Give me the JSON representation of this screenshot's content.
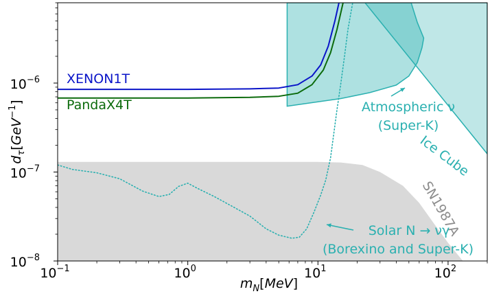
{
  "chart_data": {
    "type": "line",
    "xscale": "log",
    "yscale": "log",
    "xlim": [
      0.1,
      200
    ],
    "ylim": [
      1e-08,
      8e-06
    ],
    "xlabel": "m_N[MeV]",
    "ylabel": "d_τ[GeV^{-1}]",
    "xticks": [
      {
        "value": 0.1,
        "label": "10",
        "exp": "−1"
      },
      {
        "value": 1,
        "label": "10",
        "exp": "0"
      },
      {
        "value": 10,
        "label": "10",
        "exp": "1"
      },
      {
        "value": 100,
        "label": "10",
        "exp": "2"
      }
    ],
    "yticks": [
      {
        "value": 1e-08,
        "label": "10",
        "exp": "−8"
      },
      {
        "value": 1e-07,
        "label": "10",
        "exp": "−7"
      },
      {
        "value": 1e-06,
        "label": "10",
        "exp": "−6"
      }
    ],
    "series": [
      {
        "name": "XENON1T",
        "color": "#0a14c8",
        "style": "solid",
        "points": [
          [
            0.1,
            8.5e-07
          ],
          [
            1,
            8.5e-07
          ],
          [
            3,
            8.6e-07
          ],
          [
            5,
            8.8e-07
          ],
          [
            7,
            9.6e-07
          ],
          [
            9,
            1.2e-06
          ],
          [
            10.5,
            1.6e-06
          ],
          [
            12,
            2.6e-06
          ],
          [
            13.5,
            5e-06
          ],
          [
            14.5,
            8e-06
          ]
        ]
      },
      {
        "name": "PandaX4T",
        "color": "#0b6a0b",
        "style": "solid",
        "points": [
          [
            0.1,
            6.8e-07
          ],
          [
            1,
            6.8e-07
          ],
          [
            3,
            6.9e-07
          ],
          [
            5,
            7.1e-07
          ],
          [
            7,
            7.7e-07
          ],
          [
            9,
            9.6e-07
          ],
          [
            11,
            1.4e-06
          ],
          [
            12.5,
            2.2e-06
          ],
          [
            14,
            4e-06
          ],
          [
            15.6,
            8e-06
          ]
        ]
      },
      {
        "name": "Solar N → νγ (Borexino and Super-K)",
        "color": "#2ab0b0",
        "style": "dotted",
        "points": [
          [
            0.1,
            1.2e-07
          ],
          [
            0.13,
            1.07e-07
          ],
          [
            0.2,
            9.8e-08
          ],
          [
            0.3,
            8.4e-08
          ],
          [
            0.45,
            6.1e-08
          ],
          [
            0.6,
            5.3e-08
          ],
          [
            0.72,
            5.6e-08
          ],
          [
            0.85,
            6.9e-08
          ],
          [
            1,
            7.5e-08
          ],
          [
            1.2,
            6.5e-08
          ],
          [
            1.6,
            5.3e-08
          ],
          [
            2.2,
            4.1e-08
          ],
          [
            3,
            3.2e-08
          ],
          [
            4,
            2.3e-08
          ],
          [
            5,
            1.95e-08
          ],
          [
            6.3,
            1.8e-08
          ],
          [
            7.2,
            1.85e-08
          ],
          [
            8.2,
            2.3e-08
          ],
          [
            9.3,
            3.5e-08
          ],
          [
            10.5,
            5.5e-08
          ],
          [
            11.5,
            8.2e-08
          ],
          [
            12.5,
            1.45e-07
          ],
          [
            13.2,
            2.6e-07
          ],
          [
            14,
            5e-07
          ],
          [
            15,
            1e-06
          ],
          [
            16,
            2e-06
          ],
          [
            17,
            4e-06
          ],
          [
            18.5,
            8e-06
          ]
        ]
      }
    ],
    "regions": [
      {
        "name": "SN1987A",
        "color": "#d9d9d9",
        "opacity": 1,
        "points": [
          [
            0.1,
            1.3e-07
          ],
          [
            10,
            1.3e-07
          ],
          [
            15,
            1.28e-07
          ],
          [
            22,
            1.2e-07
          ],
          [
            30,
            1e-07
          ],
          [
            45,
            7e-08
          ],
          [
            60,
            4.5e-08
          ],
          [
            80,
            2.5e-08
          ],
          [
            100,
            1.6e-08
          ],
          [
            130,
            1e-08
          ],
          [
            0.1,
            1e-08
          ]
        ]
      },
      {
        "name": "Ice Cube",
        "color": "#2ab0b0",
        "opacity": 0.3,
        "points": [
          [
            23,
            8e-06
          ],
          [
            200,
            1.6e-07
          ],
          [
            200,
            8e-06
          ]
        ]
      },
      {
        "name": "Atmospheric ν (Super-K)",
        "color": "#2ab0b0",
        "opacity": 0.38,
        "points": [
          [
            5.8,
            8e-06
          ],
          [
            5.8,
            5.5e-07
          ],
          [
            15,
            6.7e-07
          ],
          [
            25,
            7.8e-07
          ],
          [
            40,
            9.5e-07
          ],
          [
            50,
            1.2e-06
          ],
          [
            58,
            1.7e-06
          ],
          [
            63,
            2.5e-06
          ],
          [
            65,
            3.2e-06
          ],
          [
            58,
            4.8e-06
          ],
          [
            52,
            8e-06
          ]
        ]
      }
    ],
    "labels": {
      "xenon": "XENON1T",
      "pandax": "PandaX4T",
      "atm_line1": "Atmospheric ν",
      "atm_line2": "(Super-K)",
      "icecube": "Ice Cube",
      "sn": "SN1987A",
      "solar_line1": "Solar N → νγ",
      "solar_line2": "(Borexino and Super-K)"
    }
  }
}
